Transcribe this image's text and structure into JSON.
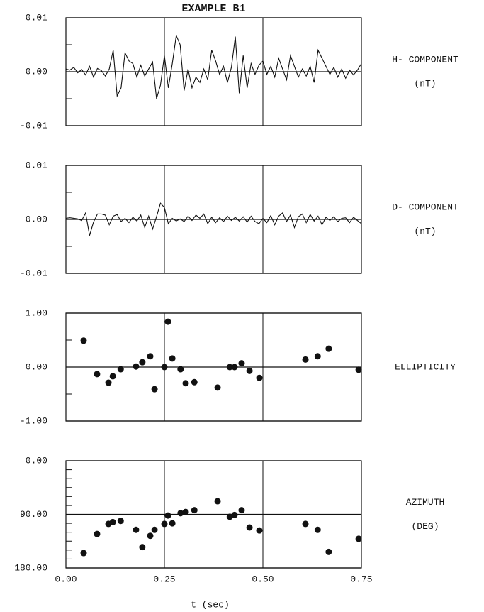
{
  "chart_data": [
    {
      "type": "line",
      "title": "EXAMPLE B1",
      "side_label": [
        "H- COMPONENT",
        "(nT)"
      ],
      "color": "#111",
      "x": [
        0,
        0.01,
        0.02,
        0.03,
        0.04,
        0.05,
        0.06,
        0.07,
        0.08,
        0.09,
        0.1,
        0.11,
        0.12,
        0.13,
        0.14,
        0.15,
        0.16,
        0.17,
        0.18,
        0.19,
        0.2,
        0.21,
        0.22,
        0.23,
        0.24,
        0.25,
        0.26,
        0.27,
        0.28,
        0.29,
        0.3,
        0.31,
        0.32,
        0.33,
        0.34,
        0.35,
        0.36,
        0.37,
        0.38,
        0.39,
        0.4,
        0.41,
        0.42,
        0.43,
        0.44,
        0.45,
        0.46,
        0.47,
        0.48,
        0.49,
        0.5,
        0.51,
        0.52,
        0.53,
        0.54,
        0.55,
        0.56,
        0.57,
        0.58,
        0.59,
        0.6,
        0.61,
        0.62,
        0.63,
        0.64,
        0.65,
        0.66,
        0.67,
        0.68,
        0.69,
        0.7,
        0.71,
        0.72,
        0.73,
        0.74,
        0.75
      ],
      "values": [
        0.0005,
        0.0003,
        0.0008,
        -0.0002,
        0.0004,
        -0.0006,
        0.001,
        -0.001,
        0.0006,
        0.0002,
        -0.0008,
        0.0005,
        0.004,
        -0.0045,
        -0.003,
        0.0035,
        0.002,
        0.0015,
        -0.001,
        0.0012,
        -0.0008,
        0.0005,
        0.0018,
        -0.005,
        -0.0025,
        0.003,
        -0.003,
        0.0015,
        0.0067,
        0.005,
        -0.0035,
        0.0005,
        -0.003,
        -0.001,
        -0.002,
        0.0005,
        -0.0015,
        0.004,
        0.002,
        -0.0005,
        0.001,
        -0.002,
        0.0008,
        0.0065,
        -0.004,
        0.003,
        -0.003,
        0.0015,
        -0.0005,
        0.0012,
        0.002,
        -0.0005,
        0.001,
        -0.001,
        0.0025,
        0.0005,
        -0.0015,
        0.003,
        0.001,
        -0.001,
        0.0005,
        -0.0008,
        0.001,
        -0.002,
        0.004,
        0.0025,
        0.001,
        -0.0005,
        0.0008,
        -0.001,
        0.0005,
        -0.0012,
        0.0003,
        -0.0006,
        0.0003,
        0.0015
      ],
      "xlim": [
        0,
        0.75
      ],
      "xgrid": [
        0.25,
        0.5
      ],
      "ylim": [
        -0.01,
        0.01
      ],
      "yticks": [
        {
          "value": -0.01,
          "label": "-0.01"
        },
        {
          "value": 0,
          "label": "0.00"
        },
        {
          "value": 0.01,
          "label": "0.01"
        }
      ],
      "yminor": [
        -0.005,
        0.005
      ]
    },
    {
      "type": "line",
      "side_label": [
        "D- COMPONENT",
        "(nT)"
      ],
      "color": "#111",
      "x": [
        0,
        0.01,
        0.02,
        0.03,
        0.04,
        0.05,
        0.06,
        0.07,
        0.08,
        0.09,
        0.1,
        0.11,
        0.12,
        0.13,
        0.14,
        0.15,
        0.16,
        0.17,
        0.18,
        0.19,
        0.2,
        0.21,
        0.22,
        0.23,
        0.24,
        0.25,
        0.26,
        0.27,
        0.28,
        0.29,
        0.3,
        0.31,
        0.32,
        0.33,
        0.34,
        0.35,
        0.36,
        0.37,
        0.38,
        0.39,
        0.4,
        0.41,
        0.42,
        0.43,
        0.44,
        0.45,
        0.46,
        0.47,
        0.48,
        0.49,
        0.5,
        0.51,
        0.52,
        0.53,
        0.54,
        0.55,
        0.56,
        0.57,
        0.58,
        0.59,
        0.6,
        0.61,
        0.62,
        0.63,
        0.64,
        0.65,
        0.66,
        0.67,
        0.68,
        0.69,
        0.7,
        0.71,
        0.72,
        0.73,
        0.74,
        0.75
      ],
      "values": [
        0.0002,
        0.0003,
        0.0002,
        0.0001,
        -0.0002,
        0.0012,
        -0.003,
        -0.0005,
        0.001,
        0.001,
        0.0008,
        -0.001,
        0.0006,
        0.0009,
        -0.0004,
        0.0002,
        -0.0006,
        0.0004,
        -0.0003,
        0.0008,
        -0.0015,
        0.0006,
        -0.0018,
        0.0005,
        0.003,
        0.0022,
        -0.0008,
        0.0002,
        -0.0003,
        0.0001,
        -0.0004,
        0.0006,
        -0.0002,
        0.0008,
        0.0002,
        0.001,
        -0.0008,
        0.0004,
        -0.0006,
        0.0003,
        -0.0004,
        0.0006,
        -0.0002,
        0.0004,
        -0.0003,
        0.0005,
        -0.0005,
        0.0006,
        -0.0004,
        -0.0008,
        0.0002,
        -0.0006,
        0.0007,
        -0.001,
        0.0006,
        0.0012,
        -0.0004,
        0.0008,
        -0.0015,
        0.0005,
        0.001,
        -0.0006,
        0.0009,
        -0.0003,
        0.0006,
        -0.001,
        0.0004,
        -0.0002,
        0.0005,
        -0.0004,
        0.0002,
        0.0003,
        -0.0006,
        0.0004,
        -0.0002,
        -0.0008
      ],
      "xlim": [
        0,
        0.75
      ],
      "xgrid": [
        0.25,
        0.5
      ],
      "ylim": [
        -0.01,
        0.01
      ],
      "yticks": [
        {
          "value": -0.01,
          "label": "-0.01"
        },
        {
          "value": 0,
          "label": "0.00"
        },
        {
          "value": 0.01,
          "label": "0.01"
        }
      ],
      "yminor": [
        -0.005,
        0.005
      ]
    },
    {
      "type": "scatter",
      "side_label": [
        "ELLIPTICITY"
      ],
      "color": "#111",
      "x": [
        0.045,
        0.079,
        0.108,
        0.119,
        0.139,
        0.178,
        0.194,
        0.214,
        0.225,
        0.25,
        0.259,
        0.27,
        0.291,
        0.304,
        0.326,
        0.385,
        0.416,
        0.428,
        0.446,
        0.466,
        0.491,
        0.608,
        0.639,
        0.667,
        0.743
      ],
      "values": [
        0.49,
        -0.13,
        -0.29,
        -0.17,
        -0.04,
        0.01,
        0.09,
        0.2,
        -0.41,
        0,
        0.84,
        0.16,
        -0.04,
        -0.3,
        -0.28,
        -0.38,
        0,
        0,
        0.07,
        -0.07,
        -0.2,
        0.14,
        0.2,
        0.34,
        -0.05
      ],
      "xlim": [
        0,
        0.75
      ],
      "xgrid": [
        0.25,
        0.5
      ],
      "ylim": [
        -1,
        1
      ],
      "yticks": [
        {
          "value": -1,
          "label": "-1.00"
        },
        {
          "value": 0,
          "label": "0.00"
        },
        {
          "value": 1,
          "label": "1.00"
        }
      ],
      "yminor": [
        -0.5,
        0.5
      ]
    },
    {
      "type": "scatter",
      "side_label": [
        "AZIMUTH",
        "(DEG)"
      ],
      "xlabel": "t (sec)",
      "color": "#111",
      "x": [
        0.045,
        0.079,
        0.108,
        0.119,
        0.139,
        0.178,
        0.194,
        0.214,
        0.225,
        0.25,
        0.259,
        0.27,
        0.291,
        0.304,
        0.326,
        0.385,
        0.416,
        0.428,
        0.446,
        0.466,
        0.491,
        0.608,
        0.639,
        0.667,
        0.743
      ],
      "values": [
        155,
        123,
        106,
        103,
        101,
        116,
        145,
        126,
        116,
        106,
        92,
        105,
        88,
        86,
        83,
        68,
        94,
        91,
        83,
        112,
        117,
        106,
        116,
        153,
        131
      ],
      "xlim": [
        0,
        0.75
      ],
      "xticks": [
        {
          "value": 0,
          "label": "0.00"
        },
        {
          "value": 0.25,
          "label": "0.25"
        },
        {
          "value": 0.5,
          "label": "0.50"
        },
        {
          "value": 0.75,
          "label": "0.75"
        }
      ],
      "ylim": [
        0,
        180
      ],
      "y_inverted": true,
      "yticks": [
        {
          "value": 0,
          "label": "0.00"
        },
        {
          "value": 90,
          "label": "90.00"
        },
        {
          "value": 180,
          "label": "180.00"
        }
      ],
      "yminor": [
        15,
        30,
        45,
        60,
        75,
        105,
        120,
        135,
        150,
        165
      ]
    }
  ]
}
